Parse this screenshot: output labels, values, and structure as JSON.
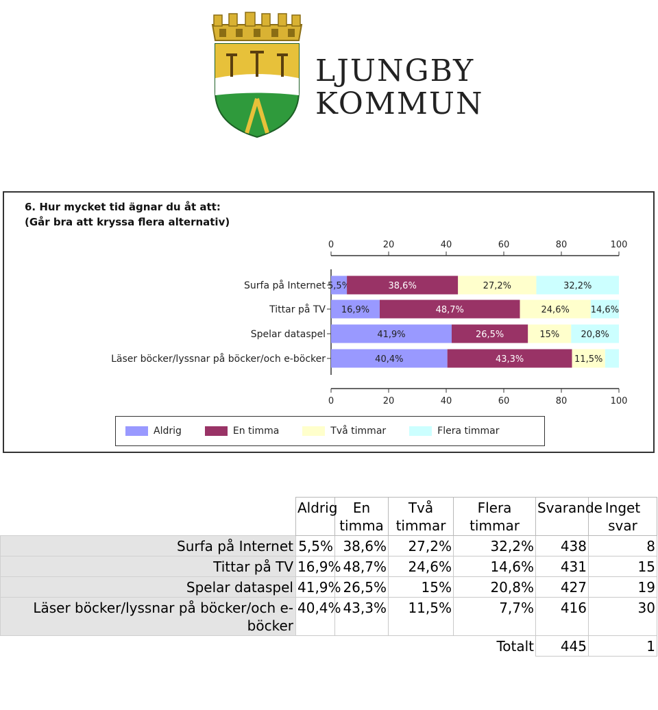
{
  "logo": {
    "line1": "LJUNGBY",
    "line2": "KOMMUN"
  },
  "chart_data": {
    "type": "bar",
    "orientation": "horizontal-stacked",
    "title_line1": "6. Hur mycket tid ägnar du åt att:",
    "title_line2": "(Går bra att kryssa flera alternativ)",
    "categories": [
      "Surfa på Internet",
      "Tittar på TV",
      "Spelar dataspel",
      "Läser böcker/lyssnar på böcker/och e-böcker"
    ],
    "series": [
      {
        "name": "Aldrig",
        "color": "#9999ff",
        "values": [
          5.5,
          16.9,
          41.9,
          40.4
        ],
        "labels": [
          "5,5%",
          "16,9%",
          "41,9%",
          "40,4%"
        ]
      },
      {
        "name": "En timma",
        "color": "#993366",
        "values": [
          38.6,
          48.7,
          26.5,
          43.3
        ],
        "labels": [
          "38,6%",
          "48,7%",
          "26,5%",
          "43,3%"
        ]
      },
      {
        "name": "Två timmar",
        "color": "#ffffcc",
        "values": [
          27.2,
          24.6,
          15,
          11.5
        ],
        "labels": [
          "27,2%",
          "24,6%",
          "15%",
          "11,5%"
        ]
      },
      {
        "name": "Flera timmar",
        "color": "#ccffff",
        "values": [
          32.2,
          14.6,
          20.8,
          7.7
        ],
        "labels": [
          "32,2%",
          "14,6%",
          "20,8%",
          ""
        ]
      }
    ],
    "xlim": [
      0,
      100
    ],
    "xticks": [
      "0",
      "20",
      "40",
      "60",
      "80",
      "100"
    ],
    "legend_position": "bottom"
  },
  "table": {
    "headers": [
      "Aldrig",
      "En timma",
      "Två timmar",
      "Flera timmar",
      "Svarande",
      "Inget svar"
    ],
    "rows": [
      {
        "label": "Surfa på Internet",
        "cells": [
          "5,5%",
          "38,6%",
          "27,2%",
          "32,2%",
          "438",
          "8"
        ]
      },
      {
        "label": "Tittar på TV",
        "cells": [
          "16,9%",
          "48,7%",
          "24,6%",
          "14,6%",
          "431",
          "15"
        ]
      },
      {
        "label": "Spelar dataspel",
        "cells": [
          "41,9%",
          "26,5%",
          "15%",
          "20,8%",
          "427",
          "19"
        ]
      },
      {
        "label": "Läser böcker/lyssnar på böcker/och e-böcker",
        "cells": [
          "40,4%",
          "43,3%",
          "11,5%",
          "7,7%",
          "416",
          "30"
        ]
      }
    ],
    "total_label": "Totalt",
    "total_respondents": "445",
    "total_no_answer": "1"
  }
}
